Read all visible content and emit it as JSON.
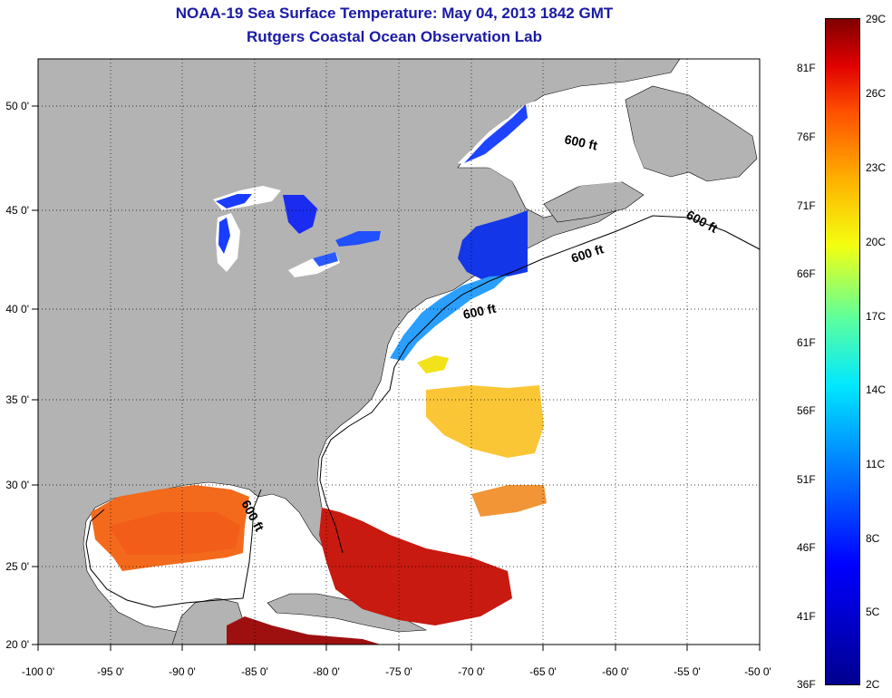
{
  "title": {
    "line1": "NOAA-19 Sea Surface Temperature:  May 04, 2013 1842 GMT",
    "line2": "Rutgers Coastal Ocean Observation Lab"
  },
  "map": {
    "lon_labels": [
      "-100 0'",
      "-95 0'",
      "-90 0'",
      "-85 0'",
      "-80 0'",
      "-75 0'",
      "-70 0'",
      "-65 0'",
      "-60 0'",
      "-55 0'",
      "-50 0'"
    ],
    "lat_labels": [
      "50 0'",
      "45 0'",
      "40 0'",
      "35 0'",
      "30 0'",
      "25 0'",
      "20 0'"
    ],
    "isobath_label": "600 ft",
    "land_color": "#b3b3b3",
    "ocean_color": "#ffffff"
  },
  "colorbar": {
    "fahrenheit": [
      "81F",
      "76F",
      "71F",
      "66F",
      "61F",
      "56F",
      "51F",
      "46F",
      "41F",
      "36F"
    ],
    "celsius": [
      "29C",
      "26C",
      "23C",
      "20C",
      "17C",
      "14C",
      "11C",
      "8C",
      "5C",
      "2C"
    ]
  }
}
